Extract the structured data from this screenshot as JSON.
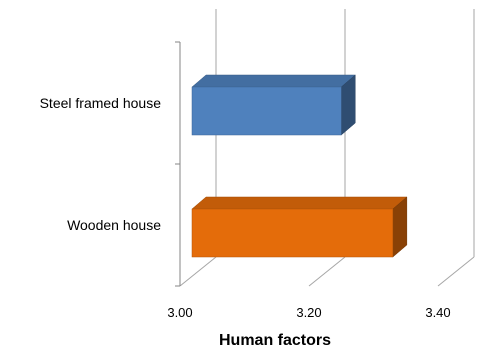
{
  "chart_data": {
    "type": "bar",
    "orientation": "horizontal",
    "three_d": true,
    "categories": [
      "Steel framed house",
      "Wooden house"
    ],
    "values": [
      3.25,
      3.33
    ],
    "colors": [
      "#4F81BD",
      "#E46C0A"
    ],
    "xlabel": "Human factors",
    "xlim": [
      3.0,
      3.4
    ],
    "x_ticks": [
      "3.00",
      "3.20",
      "3.40"
    ],
    "x_tick_values": [
      3.0,
      3.2,
      3.4
    ],
    "grid": "vertical"
  }
}
